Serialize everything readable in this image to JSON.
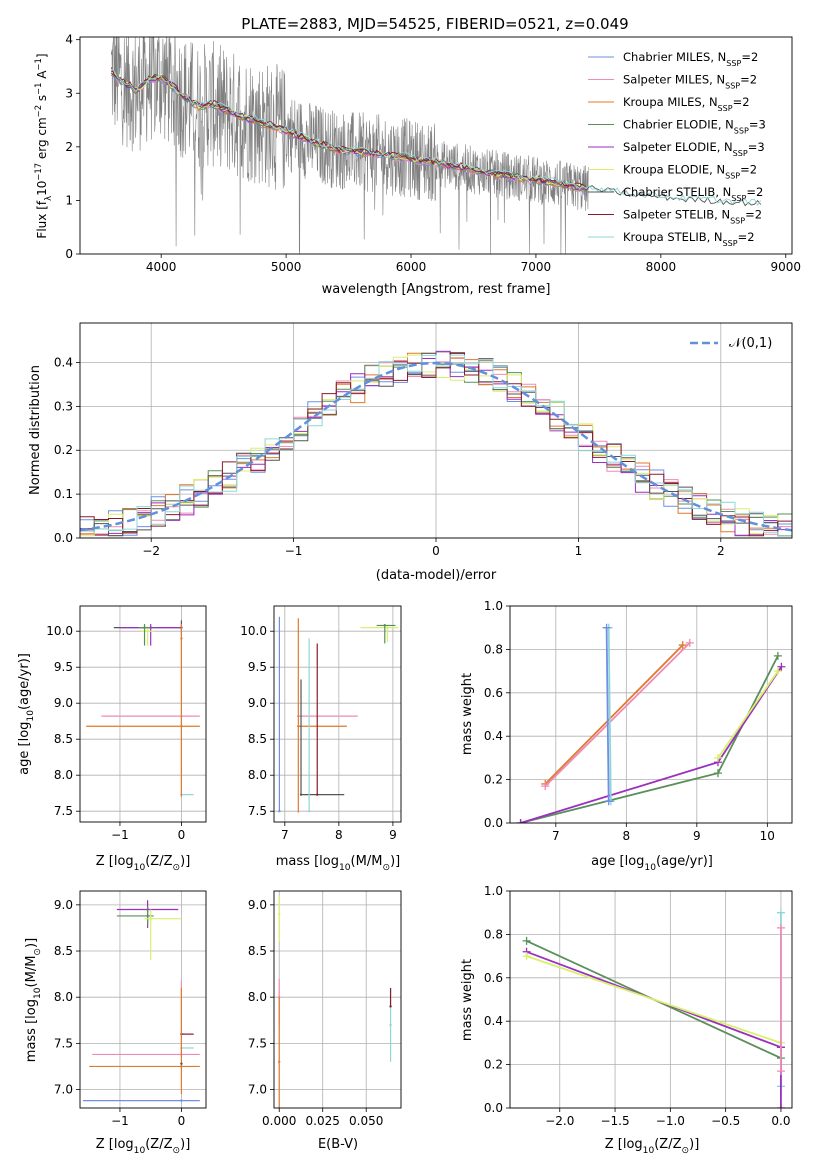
{
  "title": "PLATE=2883, MJD=54525, FIBERID=0521, z=0.049",
  "colors": {
    "chabrier_miles": "#6f8fe6",
    "salpeter_miles": "#f08ab6",
    "kroupa_miles": "#e07a2c",
    "chabrier_elodie": "#5a8f5a",
    "salpeter_elodie": "#9b2fbf",
    "kroupa_elodie": "#d8f06a",
    "chabrier_stelib": "#555555",
    "salpeter_stelib": "#8b1a2b",
    "kroupa_stelib": "#8fd6d6",
    "data": "#808080",
    "normal": "#6190dc"
  },
  "chart_data": [
    {
      "id": "spectrum",
      "type": "line",
      "xlabel": "wavelength [Angstrom, rest frame]",
      "ylabel_main": "Flux [f",
      "ylabel_sub": "λ",
      "ylabel_rest": "10",
      "ylabel_exp": "−17",
      "ylabel_unit": " erg cm",
      "ylabel_exp2": "−2",
      "ylabel_s": " s",
      "ylabel_exp3": "−1",
      "ylabel_A": " A",
      "ylabel_exp4": "−1",
      "ylabel_end": "]",
      "xlim": [
        3350,
        9050
      ],
      "ylim": [
        0,
        4.05
      ],
      "xticks": [
        4000,
        5000,
        6000,
        7000,
        8000,
        9000
      ],
      "yticks": [
        0,
        1,
        2,
        3,
        4
      ],
      "data_range": [
        3600,
        7420
      ],
      "model_range": [
        3600,
        8800
      ],
      "model_points": {
        "x": [
          3600,
          3700,
          3800,
          3900,
          4000,
          4100,
          4200,
          4300,
          4400,
          4500,
          4600,
          4800,
          5000,
          5200,
          5400,
          5600,
          5800,
          6000,
          6200,
          6400,
          6600,
          6800,
          7000,
          7200,
          7400,
          7600,
          7800,
          8000,
          8200,
          8400,
          8600,
          8800
        ],
        "y": [
          3.4,
          3.2,
          3.05,
          3.25,
          3.3,
          3.1,
          2.9,
          2.75,
          2.8,
          2.7,
          2.6,
          2.45,
          2.3,
          2.1,
          1.95,
          1.9,
          1.85,
          1.78,
          1.7,
          1.62,
          1.52,
          1.45,
          1.38,
          1.3,
          1.22,
          1.15,
          1.08,
          1.05,
          1.0,
          0.98,
          0.95,
          0.92
        ]
      },
      "legend": [
        {
          "label": "Chabrier MILES, N",
          "sub": "SSP",
          "tail": "=2",
          "color_key": "chabrier_miles"
        },
        {
          "label": "Salpeter MILES, N",
          "sub": "SSP",
          "tail": "=2",
          "color_key": "salpeter_miles"
        },
        {
          "label": "Kroupa MILES, N",
          "sub": "SSP",
          "tail": "=2",
          "color_key": "kroupa_miles"
        },
        {
          "label": "Chabrier ELODIE, N",
          "sub": "SSP",
          "tail": "=3",
          "color_key": "chabrier_elodie"
        },
        {
          "label": "Salpeter ELODIE, N",
          "sub": "SSP",
          "tail": "=3",
          "color_key": "salpeter_elodie"
        },
        {
          "label": "Kroupa ELODIE, N",
          "sub": "SSP",
          "tail": "=2",
          "color_key": "kroupa_elodie"
        },
        {
          "label": "Chabrier STELIB, N",
          "sub": "SSP",
          "tail": "=2",
          "color_key": "chabrier_stelib"
        },
        {
          "label": "Salpeter STELIB, N",
          "sub": "SSP",
          "tail": "=2",
          "color_key": "salpeter_stelib"
        },
        {
          "label": "Kroupa STELIB, N",
          "sub": "SSP",
          "tail": "=2",
          "color_key": "kroupa_stelib"
        }
      ],
      "legend_position": "upper-right"
    },
    {
      "id": "residuals",
      "type": "line",
      "xlabel": "(data-model)/error",
      "ylabel": "Normed distribution",
      "xlim": [
        -2.5,
        2.5
      ],
      "ylim": [
        0,
        0.49
      ],
      "xticks": [
        -2,
        -1,
        0,
        1,
        2
      ],
      "yticks": [
        0.0,
        0.1,
        0.2,
        0.3,
        0.4
      ],
      "grid": true,
      "legend": [
        {
          "label": "𝒩(0,1)",
          "color_key": "normal"
        }
      ],
      "legend_position": "upper-right",
      "bin_width": 0.1
    },
    {
      "id": "age_vs_Z",
      "type": "scatter",
      "xlabel": "Z [log",
      "xlabel_sub": "10",
      "xlabel_tail": "(Z/Z",
      "xlabel_sub2": "⊙",
      "xlabel_end": ")]",
      "ylabel": "age  [log",
      "ylabel_sub": "10",
      "ylabel_tail": "(age/yr)]",
      "xlim": [
        -1.65,
        0.4
      ],
      "ylim": [
        7.35,
        10.35
      ],
      "xticks": [
        -1,
        0
      ],
      "yticks": [
        7.5,
        8.0,
        8.5,
        9.0,
        9.5,
        10.0
      ],
      "grid": true,
      "points": [
        {
          "x": 0.0,
          "y": 10.05,
          "xerr": [
            1.1,
            0.0
          ],
          "yerr": [
            0.1,
            0.1
          ],
          "color_key": "chabrier_stelib"
        },
        {
          "x": -0.5,
          "y": 10.05,
          "xerr": [
            0.5,
            0.5
          ],
          "yerr": [
            0.25,
            0.05
          ],
          "color_key": "salpeter_elodie"
        },
        {
          "x": -0.55,
          "y": 10.0,
          "xerr": [
            0.1,
            0.1
          ],
          "yerr": [
            0.2,
            0.05
          ],
          "color_key": "kroupa_elodie"
        },
        {
          "x": -0.6,
          "y": 10.05,
          "xerr": [
            0.1,
            0.1
          ],
          "yerr": [
            0.25,
            0.05
          ],
          "color_key": "chabrier_elodie"
        },
        {
          "x": 0.0,
          "y": 8.82,
          "xerr": [
            1.3,
            0.3
          ],
          "yerr": [
            0.0,
            0.0
          ],
          "color_key": "salpeter_miles"
        },
        {
          "x": 0.0,
          "y": 8.68,
          "xerr": [
            1.55,
            0.3
          ],
          "yerr": [
            0.0,
            0.0
          ],
          "color_key": "kroupa_miles"
        },
        {
          "x": 0.0,
          "y": 7.73,
          "xerr": [
            0.0,
            0.2
          ],
          "yerr": [
            0.0,
            2.3
          ],
          "color_key": "kroupa_stelib"
        },
        {
          "x": 0.0,
          "y": 9.9,
          "xerr": [
            0.0,
            0.0
          ],
          "yerr": [
            2.2,
            0.2
          ],
          "color_key": "kroupa_miles"
        }
      ]
    },
    {
      "id": "age_vs_mass",
      "type": "scatter",
      "xlabel": "mass [log",
      "xlabel_sub": "10",
      "xlabel_tail": "(M/M",
      "xlabel_sub2": "⊙",
      "xlabel_end": ")]",
      "xlim": [
        6.8,
        9.15
      ],
      "ylim": [
        7.35,
        10.35
      ],
      "xticks": [
        7,
        8,
        9
      ],
      "yticks": [
        7.5,
        8.0,
        8.5,
        9.0,
        9.5,
        10.0
      ],
      "grid": true,
      "points": [
        {
          "x": 6.9,
          "y": 7.5,
          "xerr": [
            0,
            0
          ],
          "yerr": [
            0,
            2.7
          ],
          "color_key": "chabrier_miles"
        },
        {
          "x": 7.25,
          "y": 8.82,
          "xerr": [
            0,
            1.1
          ],
          "yerr": [
            0,
            0
          ],
          "color_key": "salpeter_miles"
        },
        {
          "x": 7.25,
          "y": 8.68,
          "xerr": [
            0,
            0.9
          ],
          "yerr": [
            1.2,
            1.5
          ],
          "color_key": "kroupa_miles"
        },
        {
          "x": 7.3,
          "y": 7.73,
          "xerr": [
            0,
            0.8
          ],
          "yerr": [
            0,
            1.6
          ],
          "color_key": "chabrier_stelib"
        },
        {
          "x": 7.45,
          "y": 7.5,
          "xerr": [
            0,
            0
          ],
          "yerr": [
            0,
            2.4
          ],
          "color_key": "kroupa_stelib"
        },
        {
          "x": 7.6,
          "y": 7.73,
          "xerr": [
            0,
            0
          ],
          "yerr": [
            0,
            2.1
          ],
          "color_key": "salpeter_stelib"
        },
        {
          "x": 8.9,
          "y": 10.05,
          "xerr": [
            0.5,
            0.2
          ],
          "yerr": [
            0.2,
            0.02
          ],
          "color_key": "kroupa_elodie"
        },
        {
          "x": 8.85,
          "y": 10.08,
          "xerr": [
            0.15,
            0.2
          ],
          "yerr": [
            0.25,
            0.02
          ],
          "color_key": "chabrier_elodie"
        }
      ]
    },
    {
      "id": "mass_weight_vs_age",
      "type": "line",
      "xlabel": "age  [log",
      "xlabel_sub": "10",
      "xlabel_tail": "(age/yr)]",
      "ylabel": "mass weight",
      "xlim": [
        6.35,
        10.35
      ],
      "ylim": [
        0,
        1
      ],
      "xticks": [
        7,
        8,
        9,
        10
      ],
      "yticks": [
        0.0,
        0.2,
        0.4,
        0.6,
        0.8,
        1.0
      ],
      "grid": true,
      "series": [
        {
          "color_key": "kroupa_miles",
          "x": [
            6.85,
            8.8
          ],
          "y": [
            0.18,
            0.82
          ]
        },
        {
          "color_key": "salpeter_miles",
          "x": [
            6.85,
            8.9
          ],
          "y": [
            0.17,
            0.83
          ]
        },
        {
          "color_key": "chabrier_elodie",
          "x": [
            6.5,
            9.3,
            10.15
          ],
          "y": [
            0.0,
            0.23,
            0.77
          ]
        },
        {
          "color_key": "salpeter_elodie",
          "x": [
            6.5,
            9.3,
            10.2
          ],
          "y": [
            0.0,
            0.28,
            0.72
          ]
        },
        {
          "color_key": "kroupa_elodie",
          "x": [
            9.3,
            10.15
          ],
          "y": [
            0.3,
            0.7
          ]
        },
        {
          "color_key": "kroupa_stelib",
          "x": [
            7.75,
            7.78
          ],
          "y": [
            0.9,
            0.1
          ]
        },
        {
          "color_key": "chabrier_miles",
          "x": [
            7.72,
            7.75
          ],
          "y": [
            0.9,
            0.1
          ]
        }
      ]
    },
    {
      "id": "mass_vs_Z",
      "type": "scatter",
      "xlabel": "Z [log",
      "xlabel_sub": "10",
      "xlabel_tail": "(Z/Z",
      "xlabel_sub2": "⊙",
      "xlabel_end": ")]",
      "ylabel": "mass [log",
      "ylabel_sub": "10",
      "ylabel_tail": "(M/M",
      "ylabel_sub2": "⊙",
      "ylabel_end": ")]",
      "xlim": [
        -1.65,
        0.4
      ],
      "ylim": [
        6.8,
        9.15
      ],
      "xticks": [
        -1,
        0
      ],
      "yticks": [
        7.0,
        7.5,
        8.0,
        8.5,
        9.0
      ],
      "grid": true,
      "points": [
        {
          "x": -0.55,
          "y": 8.95,
          "xerr": [
            0.5,
            0.5
          ],
          "yerr": [
            0.2,
            0.1
          ],
          "color_key": "salpeter_elodie"
        },
        {
          "x": -0.55,
          "y": 8.88,
          "xerr": [
            0.5,
            0.1
          ],
          "yerr": [
            0.1,
            0.1
          ],
          "color_key": "chabrier_elodie"
        },
        {
          "x": -0.5,
          "y": 8.85,
          "xerr": [
            0.1,
            0.5
          ],
          "yerr": [
            0.45,
            0.1
          ],
          "color_key": "kroupa_elodie"
        },
        {
          "x": 0.0,
          "y": 7.6,
          "xerr": [
            0.0,
            0.2
          ],
          "yerr": [
            0.0,
            0.0
          ],
          "color_key": "salpeter_stelib"
        },
        {
          "x": 0.0,
          "y": 7.45,
          "xerr": [
            0.0,
            0.2
          ],
          "yerr": [
            0.0,
            0.0
          ],
          "color_key": "kroupa_stelib"
        },
        {
          "x": 0.0,
          "y": 7.38,
          "xerr": [
            1.45,
            0.3
          ],
          "yerr": [
            0.0,
            0.8
          ],
          "color_key": "salpeter_miles"
        },
        {
          "x": 0.0,
          "y": 7.25,
          "xerr": [
            1.5,
            0.3
          ],
          "yerr": [
            0.3,
            0.85
          ],
          "color_key": "kroupa_miles"
        },
        {
          "x": 0.0,
          "y": 7.28,
          "xerr": [
            0.0,
            0.0
          ],
          "yerr": [
            0.0,
            0.0
          ],
          "color_key": "chabrier_stelib"
        },
        {
          "x": 0.0,
          "y": 6.88,
          "xerr": [
            1.6,
            0.3
          ],
          "yerr": [
            0.0,
            0.0
          ],
          "color_key": "chabrier_miles"
        }
      ]
    },
    {
      "id": "mass_vs_ebv",
      "type": "scatter",
      "xlabel": "E(B-V)",
      "xlim": [
        -0.003,
        0.07
      ],
      "ylim": [
        6.8,
        9.15
      ],
      "xticks": [
        0.0,
        0.025,
        0.05
      ],
      "xticklabels": [
        "0.000",
        "0.025",
        "0.050"
      ],
      "yticks": [
        7.0,
        7.5,
        8.0,
        8.5,
        9.0
      ],
      "grid": true,
      "points": [
        {
          "x": 0.0,
          "y": 8.9,
          "yerr": [
            0.3,
            0.2
          ],
          "color_key": "kroupa_elodie"
        },
        {
          "x": 0.0,
          "y": 8.0,
          "yerr": [
            0.3,
            0.2
          ],
          "color_key": "salpeter_miles"
        },
        {
          "x": 0.0,
          "y": 7.3,
          "yerr": [
            0.5,
            0.7
          ],
          "color_key": "kroupa_miles"
        },
        {
          "x": 0.064,
          "y": 7.7,
          "yerr": [
            0.4,
            0.4
          ],
          "color_key": "kroupa_stelib"
        },
        {
          "x": 0.064,
          "y": 7.9,
          "yerr": [
            0.0,
            0.2
          ],
          "color_key": "salpeter_stelib"
        }
      ]
    },
    {
      "id": "mass_weight_vs_Z",
      "type": "line",
      "xlabel": "Z [log",
      "xlabel_sub": "10",
      "xlabel_tail": "(Z/Z",
      "xlabel_sub2": "⊙",
      "xlabel_end": ")]",
      "ylabel": "mass weight",
      "xlim": [
        -2.45,
        0.1
      ],
      "ylim": [
        0,
        1
      ],
      "xticks": [
        -2.0,
        -1.5,
        -1.0,
        -0.5,
        0.0
      ],
      "yticks": [
        0.0,
        0.2,
        0.4,
        0.6,
        0.8,
        1.0
      ],
      "grid": true,
      "series": [
        {
          "color_key": "chabrier_elodie",
          "x": [
            -2.3,
            0.0
          ],
          "y": [
            0.77,
            0.23
          ]
        },
        {
          "color_key": "salpeter_elodie",
          "x": [
            -2.3,
            0.0
          ],
          "y": [
            0.72,
            0.28
          ]
        },
        {
          "color_key": "kroupa_elodie",
          "x": [
            -2.3,
            0.0
          ],
          "y": [
            0.7,
            0.3
          ]
        },
        {
          "color_key": "kroupa_stelib",
          "x": [
            0.0,
            0.0
          ],
          "y": [
            0.9,
            0.1
          ]
        },
        {
          "color_key": "salpeter_elodie",
          "x": [
            0.0,
            0.0
          ],
          "y": [
            0.28,
            0.0
          ]
        },
        {
          "color_key": "salpeter_miles",
          "x": [
            0.0,
            0.0
          ],
          "y": [
            0.83,
            0.17
          ]
        }
      ]
    }
  ]
}
